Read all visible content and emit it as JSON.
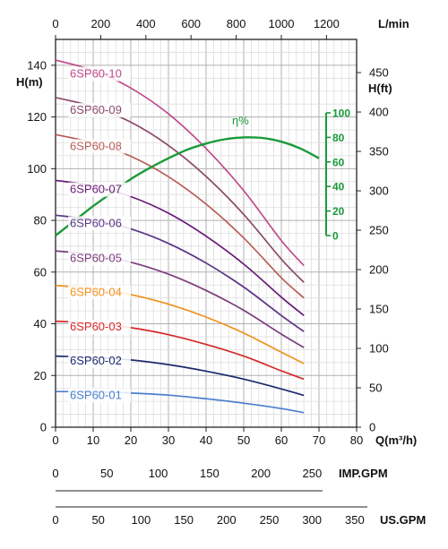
{
  "chart_data": {
    "type": "line",
    "ylim": [
      0,
      150
    ],
    "xlim": [
      0,
      80
    ],
    "grid": true,
    "top_axis": {
      "unit": "L/min",
      "ticks": [
        "0",
        "200",
        "400",
        "600",
        "800",
        "1000",
        "1200"
      ],
      "tick_values": [
        0,
        200,
        400,
        600,
        800,
        1000,
        1200
      ]
    },
    "x_axis": {
      "unit": "Q(m³/h)",
      "ticks": [
        "0",
        "10",
        "20",
        "30",
        "40",
        "50",
        "60",
        "70",
        "80"
      ],
      "tick_values": [
        0,
        10,
        20,
        30,
        40,
        50,
        60,
        70,
        80
      ]
    },
    "y_axis_left": {
      "unit": "H(m)",
      "ticks": [
        "0",
        "20",
        "40",
        "60",
        "80",
        "100",
        "120",
        "140"
      ],
      "tick_values": [
        0,
        20,
        40,
        60,
        80,
        100,
        120,
        140
      ]
    },
    "y_axis_right": {
      "unit": "H(ft)",
      "ticks": [
        "0",
        "50",
        "100",
        "150",
        "200",
        "250",
        "300",
        "350",
        "400",
        "450"
      ],
      "tick_values": [
        0,
        50,
        100,
        150,
        200,
        250,
        300,
        350,
        400,
        450
      ]
    },
    "efficiency_axis": {
      "label": "η%",
      "ticks": [
        "0",
        "20",
        "40",
        "60",
        "80",
        "100"
      ],
      "tick_values": [
        0,
        20,
        40,
        60,
        80,
        100
      ],
      "range": [
        0,
        100
      ],
      "color": "#1a9a3a"
    },
    "series": [
      {
        "name": "6SP60-01",
        "color": "#4a7fcf",
        "x": [
          0,
          10,
          20,
          30,
          40,
          50,
          60,
          66
        ],
        "y": [
          13.8,
          13.7,
          13.2,
          12.4,
          11.0,
          9.3,
          7.2,
          5.6
        ]
      },
      {
        "name": "6SP60-02",
        "color": "#1c2a6e",
        "x": [
          0,
          10,
          20,
          30,
          40,
          50,
          60,
          66
        ],
        "y": [
          27.5,
          27.0,
          26.0,
          24.2,
          21.7,
          18.6,
          14.8,
          12.3
        ]
      },
      {
        "name": "6SP60-03",
        "color": "#d42a2a",
        "x": [
          0,
          10,
          20,
          30,
          40,
          50,
          60,
          66
        ],
        "y": [
          41.0,
          40.2,
          38.5,
          35.8,
          32.0,
          27.5,
          21.8,
          18.6
        ]
      },
      {
        "name": "6SP60-04",
        "color": "#f0901e",
        "x": [
          0,
          10,
          20,
          30,
          40,
          50,
          60,
          66
        ],
        "y": [
          54.8,
          53.6,
          51.3,
          47.6,
          42.6,
          36.4,
          29.0,
          24.6
        ]
      },
      {
        "name": "6SP60-05",
        "color": "#7a3d7d",
        "x": [
          0,
          10,
          20,
          30,
          40,
          50,
          60,
          66
        ],
        "y": [
          68.2,
          66.7,
          63.8,
          59.2,
          52.9,
          45.2,
          36.0,
          30.8
        ]
      },
      {
        "name": "6SP60-06",
        "color": "#5a3585",
        "x": [
          0,
          10,
          20,
          30,
          40,
          50,
          60,
          66
        ],
        "y": [
          82.0,
          80.2,
          76.7,
          71.1,
          63.5,
          54.2,
          43.2,
          37.0
        ]
      },
      {
        "name": "6SP60-07",
        "color": "#6a1a78",
        "x": [
          0,
          10,
          20,
          30,
          40,
          50,
          60,
          66
        ],
        "y": [
          95.5,
          93.3,
          89.2,
          82.8,
          73.9,
          63.1,
          50.3,
          43.2
        ]
      },
      {
        "name": "6SP60-08",
        "color": "#b85c58",
        "x": [
          0,
          10,
          20,
          30,
          40,
          50,
          60,
          66
        ],
        "y": [
          113.2,
          110.0,
          104.8,
          96.9,
          86.3,
          73.2,
          57.8,
          50.0
        ]
      },
      {
        "name": "6SP60-09",
        "color": "#8b4a6a",
        "x": [
          0,
          10,
          20,
          30,
          40,
          50,
          60,
          66
        ],
        "y": [
          127.5,
          124.0,
          118.0,
          109.0,
          97.0,
          82.3,
          65.0,
          56.0
        ]
      },
      {
        "name": "6SP60-10",
        "color": "#c04a8a",
        "x": [
          0,
          10,
          20,
          30,
          40,
          50,
          60,
          66
        ],
        "y": [
          142.0,
          138.0,
          131.2,
          121.2,
          107.8,
          91.5,
          72.2,
          62.5
        ]
      }
    ],
    "efficiency": {
      "name": "η%",
      "x": [
        0,
        5,
        10,
        15,
        20,
        25,
        30,
        35,
        40,
        45,
        50,
        55,
        60,
        65,
        70
      ],
      "y": [
        0,
        12,
        24,
        35,
        46,
        55,
        63,
        70,
        75,
        78.5,
        80,
        79.5,
        76.5,
        71,
        63
      ]
    },
    "imp_gpm_axis": {
      "unit": "IMP.GPM",
      "ticks": [
        "0",
        "50",
        "100",
        "150",
        "200",
        "250"
      ],
      "tick_values": [
        0,
        50,
        100,
        150,
        200,
        250
      ]
    },
    "us_gpm_axis": {
      "unit": "US.GPM",
      "ticks": [
        "0",
        "50",
        "100",
        "150",
        "200",
        "250",
        "300",
        "350"
      ],
      "tick_values": [
        0,
        50,
        100,
        150,
        200,
        250,
        300,
        350
      ]
    }
  }
}
